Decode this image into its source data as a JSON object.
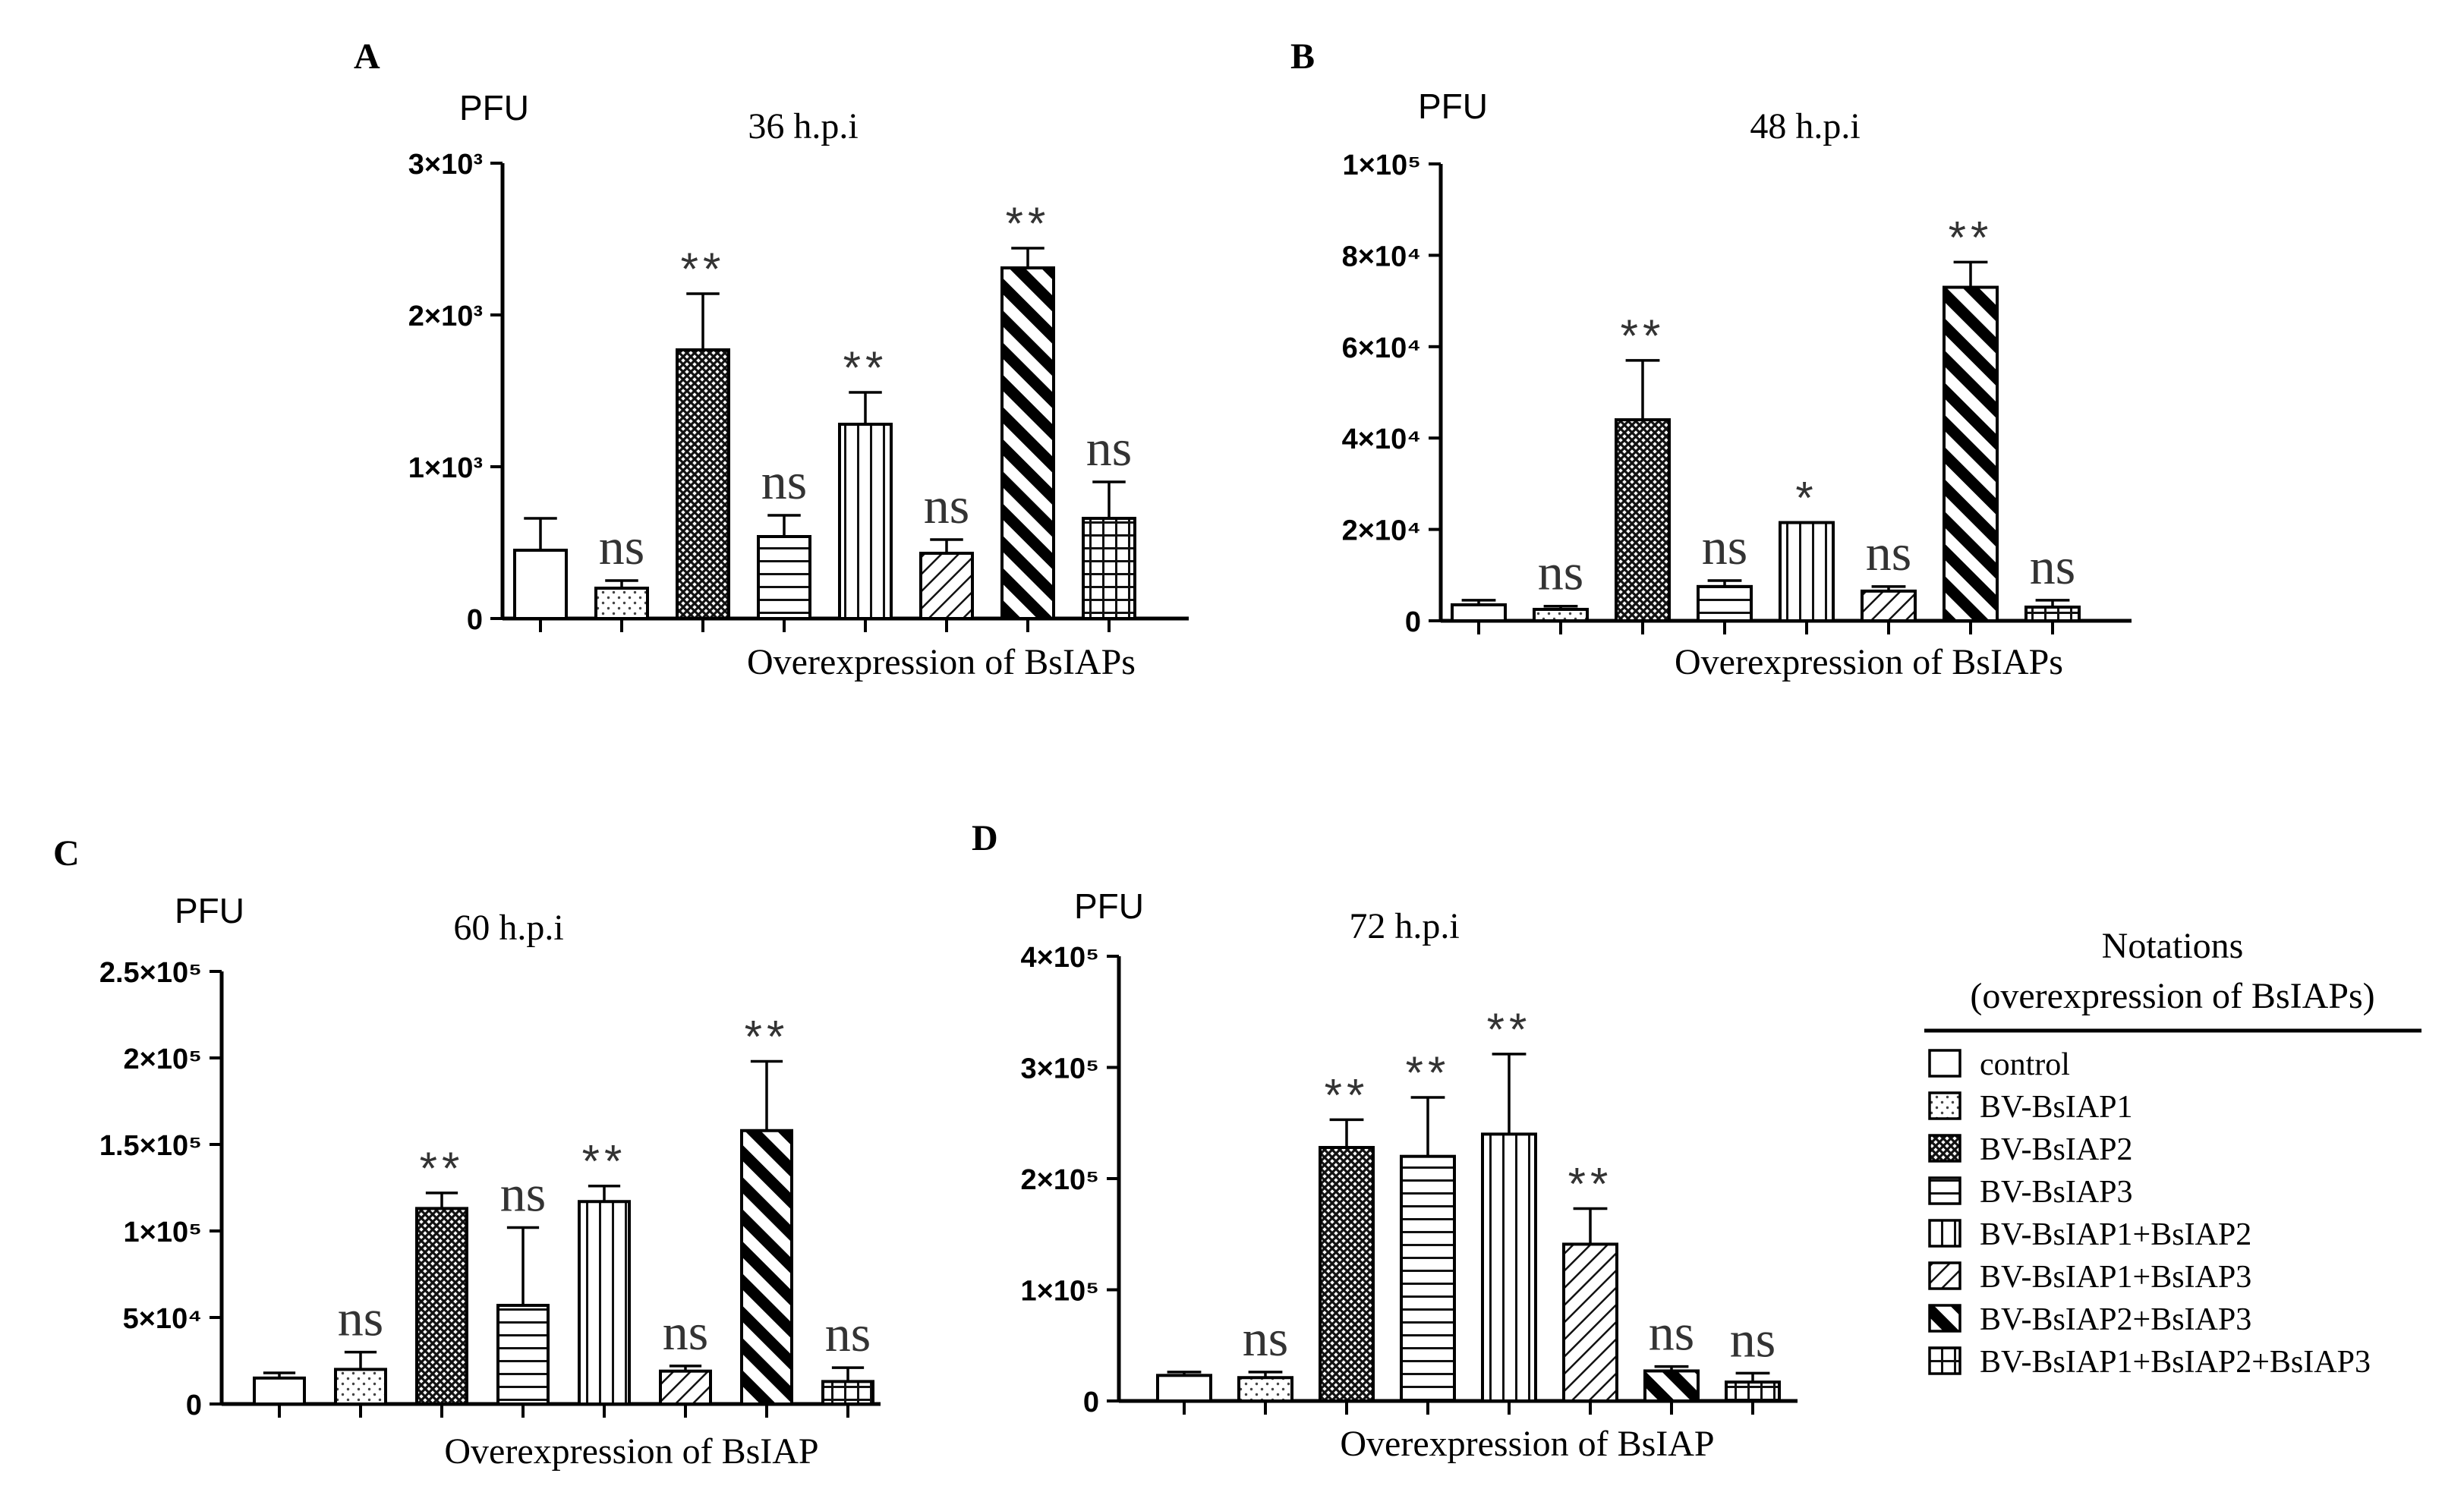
{
  "chart_data": [
    {
      "type": "bar",
      "panel": "A",
      "title": "36 h.p.i",
      "ylabel": "PFU",
      "xlabel": "Overexpression of BsIAPs",
      "ylim": [
        0,
        3000
      ],
      "yticks": [
        0,
        1000,
        2000,
        3000
      ],
      "ytick_labels": [
        "0",
        "1×10³",
        "2×10³",
        "3×10³"
      ],
      "categories": [
        "control",
        "BV-BsIAP1",
        "BV-BsIAP2",
        "BV-BsIAP3",
        "BV-BsIAP1+BsIAP2",
        "BV-BsIAP1+BsIAP3",
        "BV-BsIAP2+BsIAP3",
        "BV-BsIAP1+BsIAP2+BsIAP3"
      ],
      "values": [
        450,
        200,
        1770,
        540,
        1280,
        430,
        2310,
        660
      ],
      "errors": [
        210,
        50,
        370,
        140,
        210,
        90,
        130,
        240
      ],
      "significance": [
        "",
        "ns",
        "**",
        "ns",
        "**",
        "ns",
        "**",
        "ns"
      ]
    },
    {
      "type": "bar",
      "panel": "B",
      "title": "48 h.p.i",
      "ylabel": "PFU",
      "xlabel": "Overexpression of BsIAPs",
      "ylim": [
        0,
        100000
      ],
      "yticks": [
        0,
        20000,
        40000,
        60000,
        80000,
        100000
      ],
      "ytick_labels": [
        "0",
        "2×10⁴",
        "4×10⁴",
        "6×10⁴",
        "8×10⁴",
        "1×10⁵"
      ],
      "categories": [
        "control",
        "BV-BsIAP1",
        "BV-BsIAP2",
        "BV-BsIAP3",
        "BV-BsIAP1+BsIAP2",
        "BV-BsIAP1+BsIAP3",
        "BV-BsIAP2+BsIAP3",
        "BV-BsIAP1+BsIAP2+BsIAP3"
      ],
      "values": [
        3500,
        2500,
        44000,
        7500,
        21500,
        6500,
        73000,
        3000
      ],
      "errors": [
        1000,
        700,
        13000,
        1300,
        0,
        1000,
        5500,
        1500
      ],
      "significance": [
        "",
        "ns",
        "**",
        "ns",
        "*",
        "ns",
        "**",
        "ns"
      ]
    },
    {
      "type": "bar",
      "panel": "C",
      "title": "60 h.p.i",
      "ylabel": "PFU",
      "xlabel": "Overexpression of BsIAP",
      "ylim": [
        0,
        250000
      ],
      "yticks": [
        0,
        50000,
        100000,
        150000,
        200000,
        250000
      ],
      "ytick_labels": [
        "0",
        "5×10⁴",
        "1×10⁵",
        "1.5×10⁵",
        "2×10⁵",
        "2.5×10⁵"
      ],
      "categories": [
        "control",
        "BV-BsIAP1",
        "BV-BsIAP2",
        "BV-BsIAP3",
        "BV-BsIAP1+BsIAP2",
        "BV-BsIAP1+BsIAP3",
        "BV-BsIAP2+BsIAP3",
        "BV-BsIAP1+BsIAP2+BsIAP3"
      ],
      "values": [
        15000,
        20000,
        113000,
        57000,
        117000,
        19000,
        158000,
        13000
      ],
      "errors": [
        3000,
        10000,
        9000,
        45000,
        9000,
        3000,
        40000,
        8000
      ],
      "significance": [
        "",
        "ns",
        "**",
        "ns",
        "**",
        "ns",
        "**",
        "ns"
      ]
    },
    {
      "type": "bar",
      "panel": "D",
      "title": "72 h.p.i",
      "ylabel": "PFU",
      "xlabel": "Overexpression of BsIAP",
      "ylim": [
        0,
        400000
      ],
      "yticks": [
        0,
        100000,
        200000,
        300000,
        400000
      ],
      "ytick_labels": [
        "0",
        "1×10⁵",
        "2×10⁵",
        "3×10⁵",
        "4×10⁵"
      ],
      "categories": [
        "control",
        "BV-BsIAP1",
        "BV-BsIAP2",
        "BV-BsIAP3",
        "BV-BsIAP1+BsIAP2",
        "BV-BsIAP1+BsIAP3",
        "BV-BsIAP2+BsIAP3",
        "BV-BsIAP1+BsIAP2+BsIAP3"
      ],
      "values": [
        23000,
        21000,
        228000,
        220000,
        240000,
        141000,
        27000,
        17000
      ],
      "errors": [
        3000,
        5000,
        25000,
        53000,
        72000,
        32000,
        4000,
        8000
      ],
      "significance": [
        "",
        "ns",
        "**",
        "**",
        "**",
        "**",
        "ns",
        "ns"
      ]
    }
  ],
  "legend": {
    "title_line1": "Notations",
    "title_line2": "(overexpression of BsIAPs)",
    "entries": [
      "control",
      "BV-BsIAP1",
      "BV-BsIAP2",
      "BV-BsIAP3",
      "BV-BsIAP1+BsIAP2",
      "BV-BsIAP1+BsIAP3",
      "BV-BsIAP2+BsIAP3",
      "BV-BsIAP1+BsIAP2+BsIAP3"
    ]
  },
  "patterns": [
    "none",
    "dots",
    "crosshatch",
    "hlines",
    "vlines",
    "diag",
    "boldstripe",
    "grid"
  ]
}
